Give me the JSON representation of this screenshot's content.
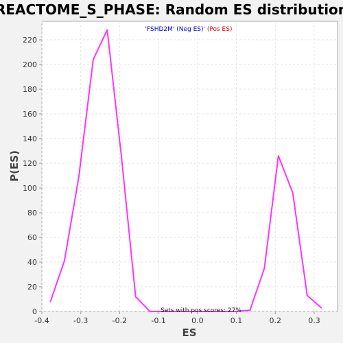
{
  "chart_data": {
    "type": "line",
    "title": "REACTOME_S_PHASE: Random ES distribution",
    "xlabel": "ES",
    "ylabel": "P(ES)",
    "xlim": [
      -0.4,
      0.36
    ],
    "ylim": [
      0,
      235
    ],
    "x_ticks": [
      -0.4,
      -0.3,
      -0.2,
      -0.1,
      0.0,
      0.1,
      0.2,
      0.3
    ],
    "x_tick_labels": [
      "-0.4",
      "-0.3",
      "-0.2",
      "-0.1",
      "0.0",
      "0.1",
      "0.2",
      "0.3"
    ],
    "y_ticks": [
      0,
      20,
      40,
      60,
      80,
      100,
      120,
      140,
      160,
      180,
      200,
      220
    ],
    "y_tick_labels": [
      "0",
      "20",
      "40",
      "60",
      "80",
      "100",
      "120",
      "140",
      "160",
      "180",
      "200",
      "220"
    ],
    "grid": true,
    "series": [
      {
        "color": "#ff33ff",
        "points": [
          {
            "x": -0.378,
            "y": 8
          },
          {
            "x": -0.342,
            "y": 41
          },
          {
            "x": -0.305,
            "y": 109
          },
          {
            "x": -0.268,
            "y": 204
          },
          {
            "x": -0.232,
            "y": 228
          },
          {
            "x": -0.195,
            "y": 124
          },
          {
            "x": -0.159,
            "y": 12
          },
          {
            "x": -0.122,
            "y": 0
          },
          {
            "x": -0.085,
            "y": 0
          },
          {
            "x": -0.049,
            "y": 0
          },
          {
            "x": -0.012,
            "y": 0
          },
          {
            "x": 0.025,
            "y": 0
          },
          {
            "x": 0.061,
            "y": 0
          },
          {
            "x": 0.098,
            "y": 0
          },
          {
            "x": 0.135,
            "y": 1
          },
          {
            "x": 0.172,
            "y": 35
          },
          {
            "x": 0.208,
            "y": 126
          },
          {
            "x": 0.245,
            "y": 96
          },
          {
            "x": 0.282,
            "y": 13
          },
          {
            "x": 0.318,
            "y": 3
          }
        ]
      }
    ],
    "legend": {
      "placement": "top-center",
      "neg_label": "'FSHD2M' (Neg ES)",
      "pos_label": "' (Pos ES)",
      "neg_color": "#0000ee",
      "pos_color": "#ee0000",
      "separator_color": "#000000"
    },
    "annotation": "Sets with pos scores: 27%"
  }
}
